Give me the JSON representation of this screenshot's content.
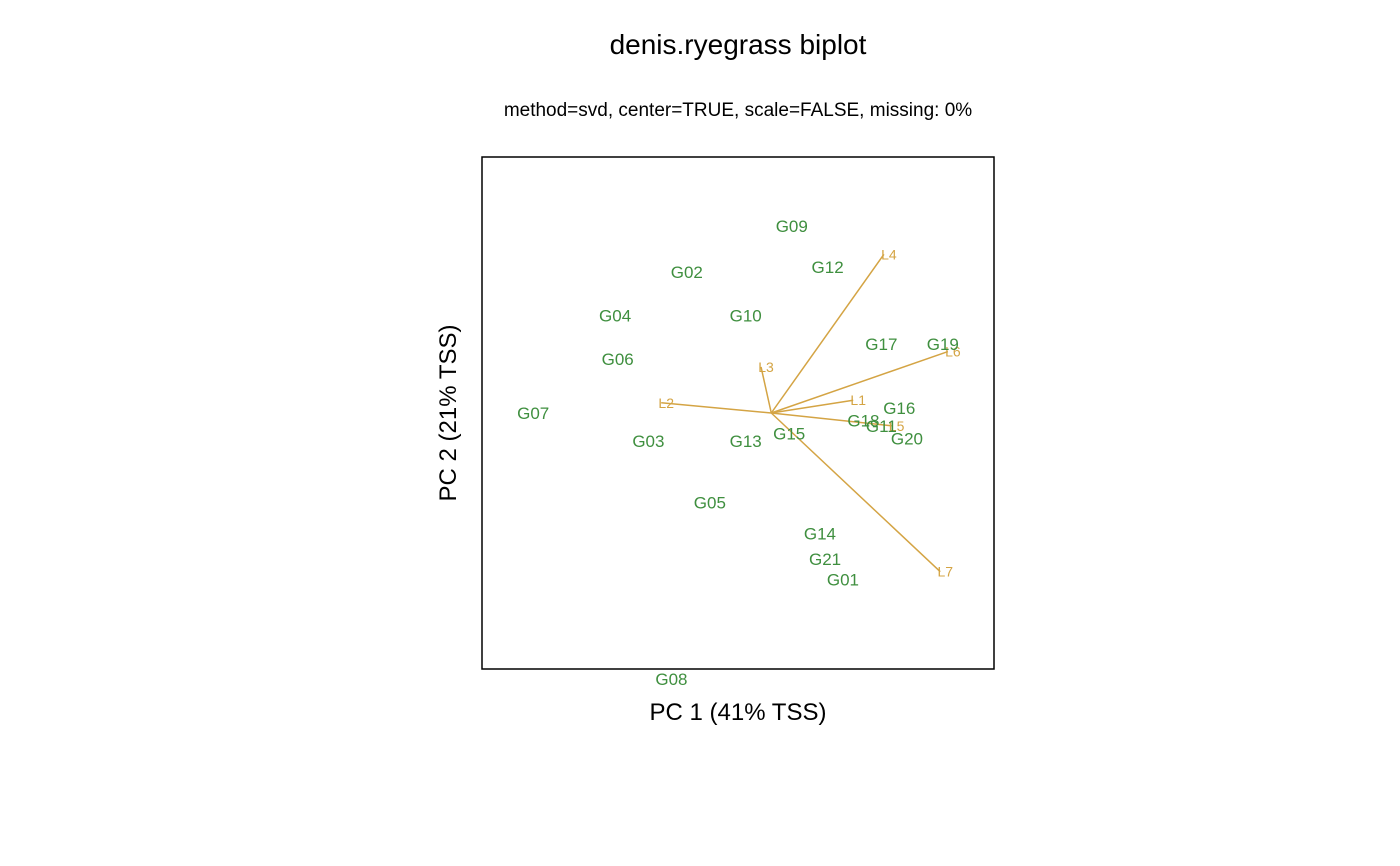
{
  "chart_data": {
    "type": "scatter",
    "title": "denis.ryegrass biplot",
    "subtitle": "method=svd, center=TRUE, scale=FALSE, missing: 0%",
    "xlabel": "PC 1 (41% TSS)",
    "ylabel": "PC 2 (21% TSS)",
    "xlim": [
      -1.0,
      1.0
    ],
    "ylim": [
      -1.0,
      1.0
    ],
    "grid": false,
    "genotype_color": "#3f8f3f",
    "environment_color": "#d4a444",
    "origin": [
      0.13,
      0.0
    ],
    "genotypes": [
      {
        "label": "G01",
        "x": 0.41,
        "y": -0.65
      },
      {
        "label": "G02",
        "x": -0.2,
        "y": 0.55
      },
      {
        "label": "G03",
        "x": -0.35,
        "y": -0.11
      },
      {
        "label": "G04",
        "x": -0.48,
        "y": 0.38
      },
      {
        "label": "G05",
        "x": -0.11,
        "y": -0.35
      },
      {
        "label": "G06",
        "x": -0.47,
        "y": 0.21
      },
      {
        "label": "G07",
        "x": -0.8,
        "y": 0.0
      },
      {
        "label": "G08",
        "x": -0.26,
        "y": -1.04
      },
      {
        "label": "G09",
        "x": 0.21,
        "y": 0.73
      },
      {
        "label": "G10",
        "x": 0.03,
        "y": 0.38
      },
      {
        "label": "G11",
        "x": 0.56,
        "y": -0.05
      },
      {
        "label": "G12",
        "x": 0.35,
        "y": 0.57
      },
      {
        "label": "G13",
        "x": 0.03,
        "y": -0.11
      },
      {
        "label": "G14",
        "x": 0.32,
        "y": -0.47
      },
      {
        "label": "G15",
        "x": 0.2,
        "y": -0.08
      },
      {
        "label": "G16",
        "x": 0.63,
        "y": 0.02
      },
      {
        "label": "G17",
        "x": 0.56,
        "y": 0.27
      },
      {
        "label": "G18",
        "x": 0.49,
        "y": -0.03
      },
      {
        "label": "G19",
        "x": 0.8,
        "y": 0.27
      },
      {
        "label": "G20",
        "x": 0.66,
        "y": -0.1
      },
      {
        "label": "G21",
        "x": 0.34,
        "y": -0.57
      }
    ],
    "environments": [
      {
        "label": "L1",
        "x": 0.45,
        "y": 0.05
      },
      {
        "label": "L2",
        "x": -0.3,
        "y": 0.04
      },
      {
        "label": "L3",
        "x": 0.09,
        "y": 0.18
      },
      {
        "label": "L4",
        "x": 0.57,
        "y": 0.62
      },
      {
        "label": "L5",
        "x": 0.6,
        "y": -0.05
      },
      {
        "label": "L6",
        "x": 0.82,
        "y": 0.24
      },
      {
        "label": "L7",
        "x": 0.79,
        "y": -0.62
      }
    ]
  }
}
